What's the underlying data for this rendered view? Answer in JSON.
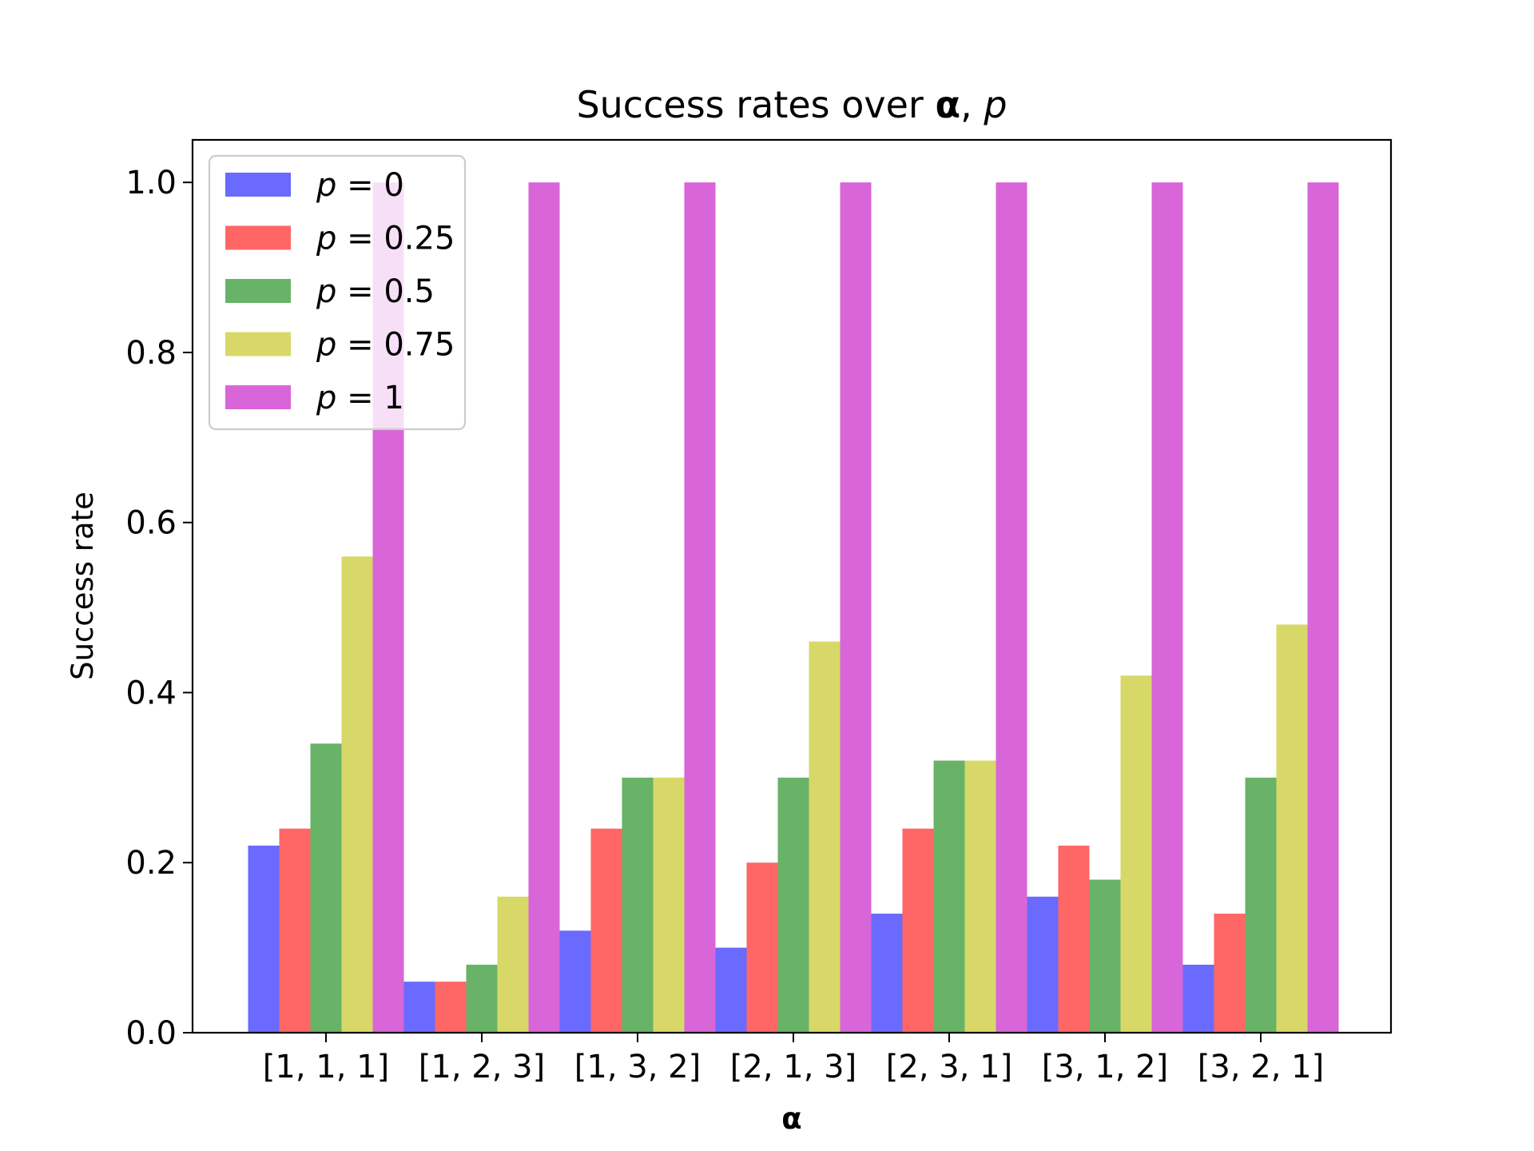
{
  "chart_data": {
    "type": "bar",
    "title": {
      "prefix": "Success rates over ",
      "alpha": "α",
      "comma": ", ",
      "p": "p"
    },
    "xlabel": "α",
    "ylabel": "Success rate",
    "ylim": [
      0,
      1.05
    ],
    "yticks": [
      "0.0",
      "0.2",
      "0.4",
      "0.6",
      "0.8",
      "1.0"
    ],
    "categories": [
      "[1, 1, 1]",
      "[1, 2, 3]",
      "[1, 3, 2]",
      "[2, 1, 3]",
      "[2, 3, 1]",
      "[3, 1, 2]",
      "[3, 2, 1]"
    ],
    "legend_position": "upper-left",
    "grid": false,
    "series": [
      {
        "name_var": "p",
        "name_rest": " = 0",
        "color": "#6a6aff",
        "values": [
          0.22,
          0.06,
          0.12,
          0.1,
          0.14,
          0.16,
          0.08
        ]
      },
      {
        "name_var": "p",
        "name_rest": " = 0.25",
        "color": "#ff6666",
        "values": [
          0.24,
          0.06,
          0.24,
          0.2,
          0.24,
          0.22,
          0.14
        ]
      },
      {
        "name_var": "p",
        "name_rest": " = 0.5",
        "color": "#68b368",
        "values": [
          0.34,
          0.08,
          0.3,
          0.3,
          0.32,
          0.18,
          0.3
        ]
      },
      {
        "name_var": "p",
        "name_rest": " = 0.75",
        "color": "#d8d868",
        "values": [
          0.56,
          0.16,
          0.3,
          0.46,
          0.32,
          0.42,
          0.48
        ]
      },
      {
        "name_var": "p",
        "name_rest": " = 1",
        "color": "#d866d8",
        "values": [
          1.0,
          1.0,
          1.0,
          1.0,
          1.0,
          1.0,
          1.0
        ]
      }
    ]
  }
}
